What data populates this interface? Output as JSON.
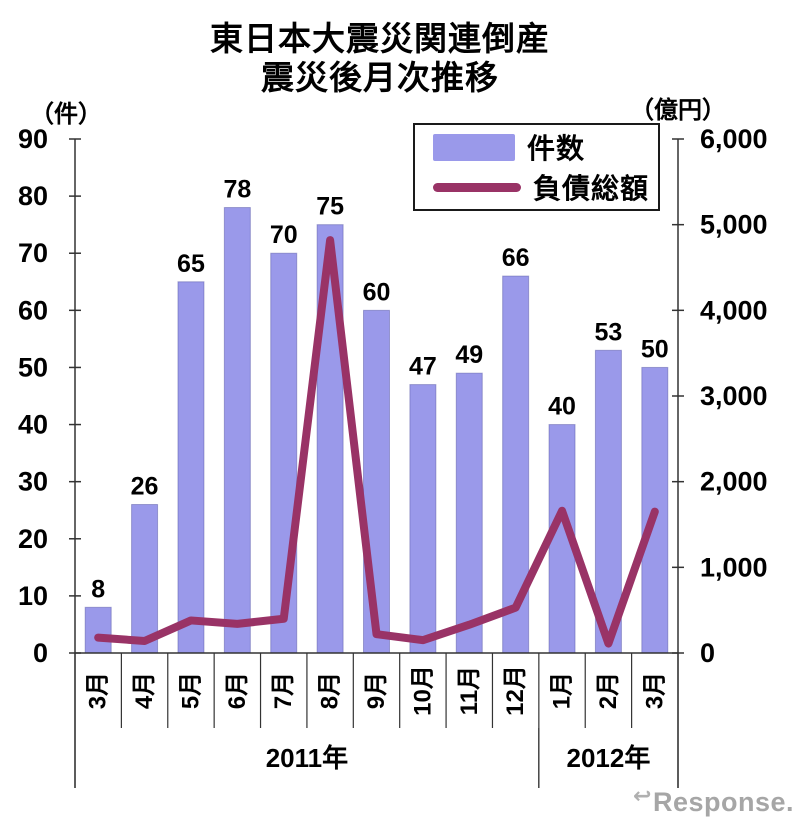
{
  "title": {
    "line1": "東日本大震災関連倒産",
    "line2": "震災後月次推移"
  },
  "legend": {
    "position": "top-right",
    "items": [
      {
        "label": "件数",
        "type": "bar",
        "color": "#9A99EA"
      },
      {
        "label": "負債総額",
        "type": "line",
        "color": "#993366"
      }
    ]
  },
  "chart_data": {
    "type": "bar+line combo",
    "title": "東日本大震災関連倒産 震災後月次推移",
    "categories": [
      "3月",
      "4月",
      "5月",
      "6月",
      "7月",
      "8月",
      "9月",
      "10月",
      "11月",
      "12月",
      "1月",
      "2月",
      "3月"
    ],
    "year_groups": [
      {
        "label": "2011年",
        "span": [
          0,
          9
        ]
      },
      {
        "label": "2012年",
        "span": [
          10,
          12
        ]
      }
    ],
    "series": [
      {
        "name": "件数",
        "type": "bar",
        "axis": "left",
        "unit": "件",
        "color": "#9A99EA",
        "values": [
          8,
          26,
          65,
          78,
          70,
          75,
          60,
          47,
          49,
          66,
          40,
          53,
          50
        ]
      },
      {
        "name": "負債総額",
        "type": "line",
        "axis": "right",
        "unit": "億円",
        "color": "#993366",
        "estimated_from_pixels": true,
        "values": [
          180,
          140,
          380,
          340,
          400,
          4820,
          220,
          150,
          330,
          530,
          1660,
          110,
          1650
        ]
      }
    ],
    "left_axis": {
      "label": "（件）",
      "range": [
        0,
        90
      ],
      "tick_step": 10,
      "tick_labels": [
        "0",
        "10",
        "20",
        "30",
        "40",
        "50",
        "60",
        "70",
        "80",
        "90"
      ]
    },
    "right_axis": {
      "label": "（億円）",
      "range": [
        0,
        6000
      ],
      "tick_step": 1000,
      "tick_labels": [
        "0",
        "1,000",
        "2,000",
        "3,000",
        "4,000",
        "5,000",
        "6,000"
      ]
    },
    "grid": false,
    "legend_position": "top-right"
  },
  "watermark": "Response."
}
